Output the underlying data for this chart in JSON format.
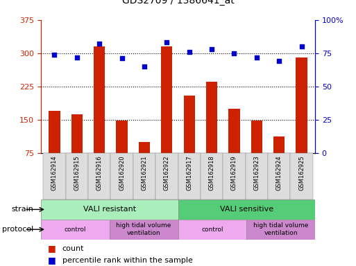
{
  "title": "GDS2709 / 1386641_at",
  "samples": [
    "GSM162914",
    "GSM162915",
    "GSM162916",
    "GSM162920",
    "GSM162921",
    "GSM162922",
    "GSM162917",
    "GSM162918",
    "GSM162919",
    "GSM162923",
    "GSM162924",
    "GSM162925"
  ],
  "counts": [
    170,
    162,
    315,
    148,
    100,
    315,
    205,
    235,
    175,
    148,
    112,
    290
  ],
  "percentiles": [
    74,
    72,
    82,
    71,
    65,
    83,
    76,
    78,
    75,
    72,
    69,
    80
  ],
  "ylim_left": [
    75,
    375
  ],
  "ylim_right": [
    0,
    100
  ],
  "yticks_left": [
    75,
    150,
    225,
    300,
    375
  ],
  "yticks_right": [
    0,
    25,
    50,
    75,
    100
  ],
  "bar_color": "#CC2200",
  "dot_color": "#0000CC",
  "bg_color": "#FFFFFF",
  "strain_groups": [
    {
      "label": "VALI resistant",
      "start": 0,
      "end": 6,
      "color": "#AAEEBB"
    },
    {
      "label": "VALI sensitive",
      "start": 6,
      "end": 12,
      "color": "#55CC77"
    }
  ],
  "protocol_groups": [
    {
      "label": "control",
      "start": 0,
      "end": 3,
      "color": "#EEAAEE"
    },
    {
      "label": "high tidal volume\nventilation",
      "start": 3,
      "end": 6,
      "color": "#CC88CC"
    },
    {
      "label": "control",
      "start": 6,
      "end": 9,
      "color": "#EEAAEE"
    },
    {
      "label": "high tidal volume\nventilation",
      "start": 9,
      "end": 12,
      "color": "#CC88CC"
    }
  ],
  "legend_count_label": "count",
  "legend_percentile_label": "percentile rank within the sample",
  "strain_label": "strain",
  "protocol_label": "protocol"
}
